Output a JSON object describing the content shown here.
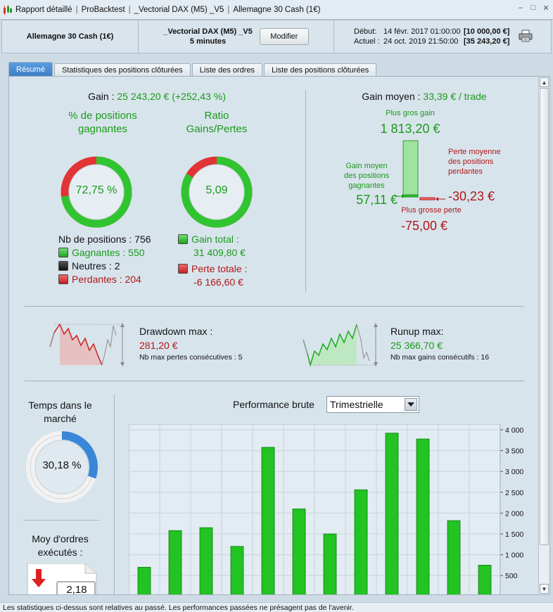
{
  "titlebar": {
    "items": [
      "Rapport détaillé",
      "ProBacktest",
      "_Vectorial DAX (M5) _V5",
      "Allemagne 30 Cash (1€)"
    ]
  },
  "header": {
    "instrument": "Allemagne 30 Cash (1€)",
    "system_name": "_Vectorial DAX (M5) _V5",
    "timeframe": "5 minutes",
    "modify_label": "Modifier",
    "start_label": "Début:",
    "start_date": "14 févr. 2017 01:00:00",
    "start_value": "[10 000,00 €]",
    "current_label": "Actuel :",
    "current_date": "24 oct. 2019 21:50:00",
    "current_value": "[35 243,20 €]"
  },
  "tabs": [
    {
      "label": "Résumé",
      "active": true
    },
    {
      "label": "Statistiques des positions clôturées",
      "active": false
    },
    {
      "label": "Liste des ordres",
      "active": false
    },
    {
      "label": "Liste des positions clôturées",
      "active": false
    }
  ],
  "summary": {
    "gain_label": "Gain : ",
    "gain_value": "25 243,20 € (+252,43 %)",
    "winning_pct_title": "% de positions gagnantes",
    "winning_pct_value": "72,75 %",
    "winning_pct": 72.75,
    "ratio_title": "Ratio Gains/Pertes",
    "ratio_value": "5,09",
    "ratio_win_share": 0.836,
    "nb_positions": "Nb de positions : 756",
    "gagnantes": "Gagnantes : 550",
    "neutres": "Neutres : 2",
    "perdantes": "Perdantes : 204",
    "gain_total_label": "Gain total :",
    "gain_total_value": "31 409,80 €",
    "perte_totale_label": "Perte totale :",
    "perte_totale_value": "-6 166,60 €"
  },
  "avg": {
    "title_label": "Gain moyen : ",
    "title_value": "33,39 € / trade",
    "biggest_gain_label": "Plus gros gain",
    "biggest_gain_value": "1 813,20 €",
    "avg_win_label": "Gain moyen des positions gagnantes",
    "avg_win_value": "57,11 €",
    "avg_loss_label": "Perte moyenne des positions perdantes",
    "avg_loss_value": "-30,23 €",
    "biggest_loss_label": "Plus grosse perte",
    "biggest_loss_value": "-75,00 €"
  },
  "drawdown": {
    "label": "Drawdown max :",
    "value": "281,20 €",
    "sub": "Nb max pertes consécutives : 5"
  },
  "runup": {
    "label": "Runup max:",
    "value": "25 366,70 €",
    "sub": "Nb max gains consécutifs : 16"
  },
  "market_time": {
    "title": "Temps dans le marché",
    "value": "30,18 %",
    "pct": 30.18
  },
  "orders": {
    "title": "Moy d'ordres exécutés :",
    "value": "2,18"
  },
  "performance": {
    "title": "Performance brute",
    "period": "Trimestrielle"
  },
  "chart_data": {
    "type": "bar",
    "title": "Performance brute",
    "values": [
      700,
      1580,
      1650,
      1200,
      3580,
      2100,
      1500,
      2560,
      3920,
      3780,
      1820,
      750
    ],
    "ylim": [
      0,
      4000
    ],
    "yticks": [
      "4 000",
      "3 500",
      "3 000",
      "2 500",
      "2 000",
      "1 500",
      "1 000",
      "500"
    ],
    "ytick_values": [
      4000,
      3500,
      3000,
      2500,
      2000,
      1500,
      1000,
      500
    ],
    "bar_color": "#22c322"
  },
  "footer": "Les statistiques ci-dessus sont relatives au passé. Les performances passées ne présagent pas de l'avenir.",
  "colors": {
    "green": "#1a9a1a",
    "red": "#b01818",
    "tab_active": "#3d7fc8",
    "ring_blue": "#3a86d8"
  }
}
